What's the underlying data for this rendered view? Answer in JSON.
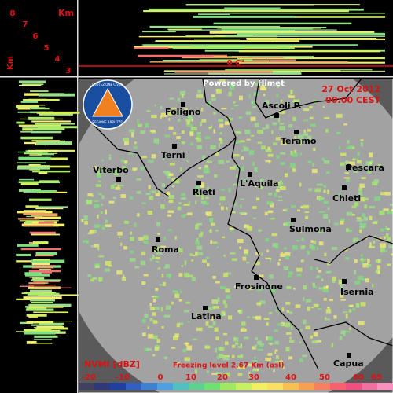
{
  "profile": {
    "km_top": "Km",
    "heights": [
      "8",
      "7",
      "6",
      "5",
      "4",
      "3"
    ],
    "km_side": "Km",
    "freezing_label": "0 C°"
  },
  "header": {
    "powered": "Powered by Himet",
    "date": "27 Oct 2012",
    "time": "00:00 CEST"
  },
  "logo": {
    "top": "PROTEZIONE CIVILE",
    "bottom": "REGIONE ABRUZZO"
  },
  "cities": [
    {
      "label": "Foligno"
    },
    {
      "label": "Ascoli P."
    },
    {
      "label": "Teramo"
    },
    {
      "label": "Terni"
    },
    {
      "label": "Viterbo"
    },
    {
      "label": "Pescara"
    },
    {
      "label": "L'Aquila"
    },
    {
      "label": "Rieti"
    },
    {
      "label": "Chieti"
    },
    {
      "label": "Sulmona"
    },
    {
      "label": "Roma"
    },
    {
      "label": "Frosinone"
    },
    {
      "label": "Isernia"
    },
    {
      "label": "Latina"
    },
    {
      "label": "Capua"
    }
  ],
  "legend": {
    "title": "NVMI [dBZ]",
    "freezing": "Freezing level  2.67 Km (asl)",
    "ticks": [
      -20,
      -10,
      0,
      10,
      20,
      30,
      40,
      50,
      60,
      65
    ]
  }
}
